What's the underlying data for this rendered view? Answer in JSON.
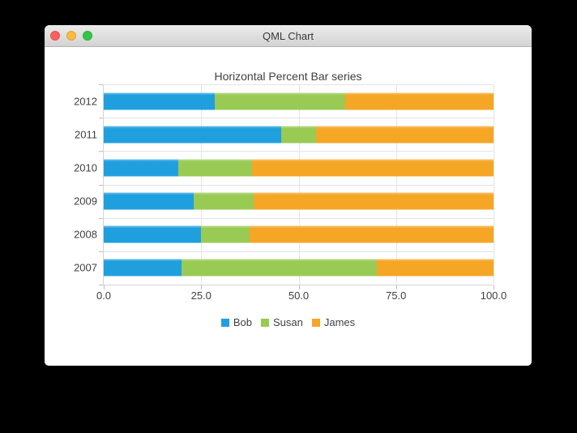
{
  "window": {
    "title": "QML Chart",
    "traffic_lights": {
      "close_color": "#fc605c",
      "minimize_color": "#fcbb40",
      "zoom_color": "#33c648"
    },
    "background": "#ffffff",
    "page_background": "#000000"
  },
  "chart_data": {
    "type": "bar",
    "orientation": "horizontal",
    "stacking": "percent",
    "title": "Horizontal Percent Bar series",
    "categories": [
      "2012",
      "2011",
      "2010",
      "2009",
      "2008",
      "2007"
    ],
    "series": [
      {
        "name": "Bob",
        "color": "#209fdf",
        "values": [
          6,
          5,
          4,
          3,
          2,
          2
        ]
      },
      {
        "name": "Susan",
        "color": "#99ca53",
        "values": [
          7,
          1,
          4,
          2,
          1,
          5
        ]
      },
      {
        "name": "James",
        "color": "#f6a625",
        "values": [
          8,
          5,
          13,
          8,
          5,
          3
        ]
      }
    ],
    "x_ticks": [
      "0.0",
      "25.0",
      "50.0",
      "75.0",
      "100.0"
    ],
    "xlim": [
      0,
      100
    ],
    "grid": true,
    "gridline_color": "#e4e4e4",
    "axis_line_color": "#d4d4d4",
    "label_color": "#404044",
    "legend_position": "bottom"
  }
}
